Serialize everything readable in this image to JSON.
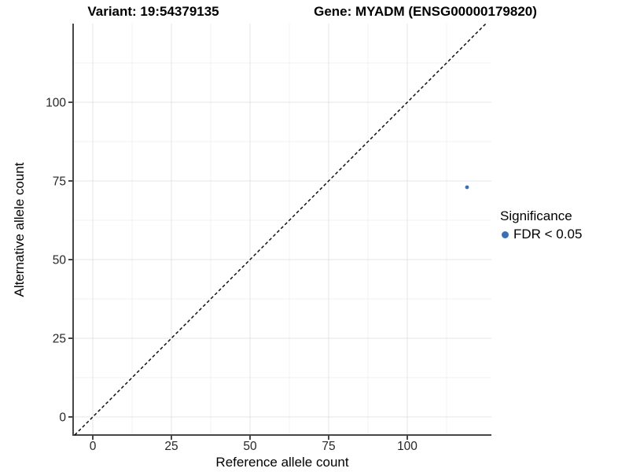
{
  "titles": {
    "variant": "Variant: 19:54379135",
    "gene": "Gene: MYADM (ENSG00000179820)"
  },
  "chart_data": {
    "type": "scatter",
    "xlabel": "Reference allele count",
    "ylabel": "Alternative allele count",
    "x_ticks": [
      0,
      25,
      50,
      75,
      100
    ],
    "y_ticks": [
      0,
      25,
      50,
      75,
      100
    ],
    "xlim": [
      -6.25,
      126.75
    ],
    "ylim": [
      -5.75,
      125
    ],
    "minor_grid_step": 12.5,
    "grid": true,
    "series": [
      {
        "name": "FDR < 0.05",
        "color": "#3A70B2",
        "points": [
          {
            "x": 119,
            "y": 73
          }
        ]
      }
    ],
    "reference_line": {
      "type": "identity",
      "style": "dashed",
      "color": "#000000"
    }
  },
  "legend": {
    "title": "Significance",
    "position": "right",
    "entries": [
      {
        "label": "FDR < 0.05",
        "color": "#3A70B2",
        "marker": "circle"
      }
    ]
  },
  "colors": {
    "grid_major": "#E4E4E4",
    "grid_minor": "#F1F1F1",
    "axis_line": "#474747",
    "tick_mark": "#333333",
    "tick_label": "#262626"
  }
}
